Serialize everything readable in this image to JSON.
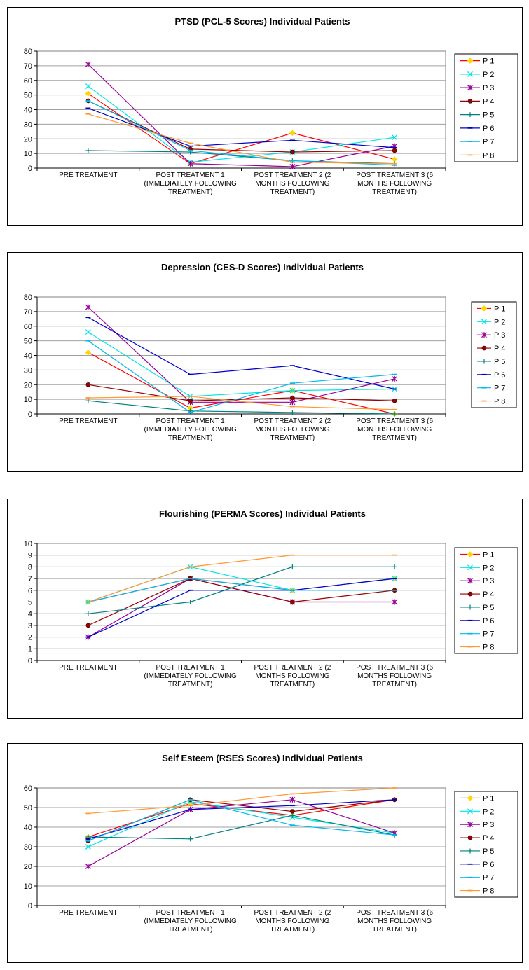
{
  "chart_data": [
    {
      "type": "line",
      "title": "PTSD (PCL-5 Scores) Individual Patients",
      "categories": [
        [
          "PRE TREATMENT"
        ],
        [
          "POST TREATMENT 1",
          "(IMMEDIATELY FOLLOWING",
          "TREATMENT)"
        ],
        [
          "POST TREATMENT 2 (2",
          "MONTHS FOLLOWING",
          "TREATMENT)"
        ],
        [
          "POST TREATMENT 3 (6",
          "MONTHS FOLLOWING",
          "TREATMENT)"
        ]
      ],
      "ylim": [
        0,
        80
      ],
      "ytick_step": 10,
      "grid": true,
      "legend": "right",
      "series": [
        {
          "name": "P 1",
          "values": [
            51,
            3,
            24,
            6
          ]
        },
        {
          "name": "P 2",
          "values": [
            56,
            4,
            11,
            21
          ]
        },
        {
          "name": "P 3",
          "values": [
            71,
            3,
            1,
            15
          ]
        },
        {
          "name": "P 4",
          "values": [
            46,
            13,
            11,
            12
          ]
        },
        {
          "name": "P 5",
          "values": [
            12,
            11,
            5,
            3
          ]
        },
        {
          "name": "P 6",
          "values": [
            41,
            15,
            19,
            14
          ]
        },
        {
          "name": "P 7",
          "values": [
            46,
            12,
            5,
            2
          ]
        },
        {
          "name": "P 8",
          "values": [
            37,
            17,
            4,
            3
          ]
        }
      ]
    },
    {
      "type": "line",
      "title": "Depression (CES-D Scores) Individual Patients",
      "categories": [
        [
          "PRE TREATMENT"
        ],
        [
          "POST TREATMENT 1",
          "(IMMEDIATELY FOLLOWING",
          "TREATMENT)"
        ],
        [
          "POST TREATMENT 2 (2",
          "MONTHS FOLLOWING",
          "TREATMENT)"
        ],
        [
          "POST TREATMENT 3 (6",
          "MONTHS FOLLOWING",
          "TREATMENT)"
        ]
      ],
      "ylim": [
        0,
        80
      ],
      "ytick_step": 10,
      "grid": true,
      "legend": "right",
      "series": [
        {
          "name": "P 1",
          "values": [
            42,
            4,
            16,
            0
          ]
        },
        {
          "name": "P 2",
          "values": [
            56,
            12,
            16,
            17
          ]
        },
        {
          "name": "P 3",
          "values": [
            73,
            8,
            8,
            24
          ]
        },
        {
          "name": "P 4",
          "values": [
            20,
            9,
            11,
            9
          ]
        },
        {
          "name": "P 5",
          "values": [
            9,
            2,
            1,
            0
          ]
        },
        {
          "name": "P 6",
          "values": [
            66,
            27,
            33,
            17
          ]
        },
        {
          "name": "P 7",
          "values": [
            50,
            1,
            21,
            27
          ]
        },
        {
          "name": "P 8",
          "values": [
            11,
            12,
            5,
            3
          ]
        }
      ]
    },
    {
      "type": "line",
      "title": "Flourishing (PERMA Scores) Individual Patients",
      "categories": [
        [
          "PRE TREATMENT"
        ],
        [
          "POST TREATMENT 1",
          "(IMMEDIATELY FOLLOWING",
          "TREATMENT)"
        ],
        [
          "POST TREATMENT 2 (2",
          "MONTHS FOLLOWING",
          "TREATMENT)"
        ],
        [
          "POST TREATMENT 3 (6",
          "MONTHS FOLLOWING",
          "TREATMENT)"
        ]
      ],
      "ylim": [
        0,
        10
      ],
      "ytick_step": 1,
      "grid": true,
      "legend": "right",
      "series": [
        {
          "name": "P 1",
          "values": [
            5,
            7,
            6,
            7
          ]
        },
        {
          "name": "P 2",
          "values": [
            5,
            8,
            6,
            7
          ]
        },
        {
          "name": "P 3",
          "values": [
            2,
            7,
            5,
            5
          ]
        },
        {
          "name": "P 4",
          "values": [
            3,
            7,
            5,
            6
          ]
        },
        {
          "name": "P 5",
          "values": [
            4,
            5,
            8,
            8
          ]
        },
        {
          "name": "P 6",
          "values": [
            2,
            6,
            6,
            7
          ]
        },
        {
          "name": "P 7",
          "values": [
            5,
            7,
            6,
            6
          ]
        },
        {
          "name": "P 8",
          "values": [
            5,
            8,
            9,
            9
          ]
        }
      ]
    },
    {
      "type": "line",
      "title": "Self Esteem (RSES Scores) Individual Patients",
      "categories": [
        [
          "PRE TREATMENT"
        ],
        [
          "POST TREATMENT 1",
          "(IMMEDIATELY FOLLOWING",
          "TREATMENT)"
        ],
        [
          "POST TREATMENT 2 (2",
          "MONTHS FOLLOWING",
          "TREATMENT)"
        ],
        [
          "POST TREATMENT 3 (6",
          "MONTHS FOLLOWING",
          "TREATMENT)"
        ]
      ],
      "ylim": [
        0,
        60
      ],
      "ytick_step": 10,
      "grid": true,
      "legend": "right",
      "series": [
        {
          "name": "P 1",
          "values": [
            35,
            52,
            46,
            54
          ]
        },
        {
          "name": "P 2",
          "values": [
            30,
            53,
            45,
            37
          ]
        },
        {
          "name": "P 3",
          "values": [
            20,
            49,
            54,
            37
          ]
        },
        {
          "name": "P 4",
          "values": [
            33,
            54,
            48,
            54
          ]
        },
        {
          "name": "P 5",
          "values": [
            35,
            34,
            46,
            36
          ]
        },
        {
          "name": "P 6",
          "values": [
            34,
            49,
            51,
            54
          ]
        },
        {
          "name": "P 7",
          "values": [
            33,
            54,
            41,
            36
          ]
        },
        {
          "name": "P 8",
          "values": [
            47,
            51,
            57,
            60
          ]
        }
      ]
    }
  ],
  "series_styles": [
    {
      "color": "#ff0000",
      "marker": "diamond",
      "marker_color": "#ffd700"
    },
    {
      "color": "#00e5e5",
      "marker": "x",
      "marker_color": "#00e5e5"
    },
    {
      "color": "#990099",
      "marker": "star",
      "marker_color": "#990099"
    },
    {
      "color": "#990000",
      "marker": "circle",
      "marker_color": "#990000"
    },
    {
      "color": "#008080",
      "marker": "plus",
      "marker_color": "#008080"
    },
    {
      "color": "#0000cc",
      "marker": "dash",
      "marker_color": "#0000cc"
    },
    {
      "color": "#00bbee",
      "marker": "dash",
      "marker_color": "#00bbee"
    },
    {
      "color": "#ff9933",
      "marker": "dash",
      "marker_color": "#ff9933"
    }
  ]
}
